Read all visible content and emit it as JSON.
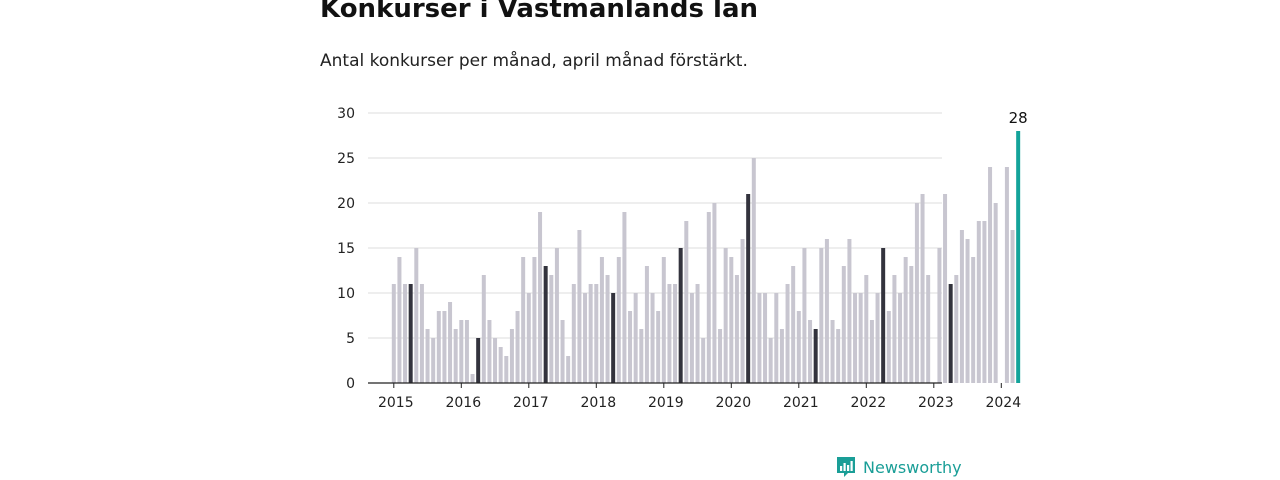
{
  "header": {
    "title": "Konkurser i Västmanlands län",
    "subtitle": "Antal konkurser per månad, april månad förstärkt."
  },
  "brand": {
    "name": "Newsworthy",
    "icon": "bar-chart-speech-bubble-icon"
  },
  "colors": {
    "bar": "#c8c6d0",
    "april": "#33333d",
    "latest": "#13a39a",
    "grid": "#dddddd",
    "axis": "#222222",
    "brand": "#1a9e97"
  },
  "chart_data": {
    "type": "bar",
    "title": "Konkurser i Västmanlands län",
    "subtitle": "Antal konkurser per månad, april månad förstärkt.",
    "xlabel": "",
    "ylabel": "",
    "ylim": [
      0,
      30
    ],
    "yticks": [
      0,
      5,
      10,
      15,
      20,
      25,
      30
    ],
    "xticks": [
      "2015",
      "2016",
      "2017",
      "2018",
      "2019",
      "2020",
      "2021",
      "2022",
      "2023",
      "2024"
    ],
    "grid": true,
    "highlight_month": 4,
    "latest_label": "28",
    "start": "2015-01",
    "end": "2024-04",
    "values": [
      11,
      14,
      11,
      11,
      15,
      11,
      6,
      5,
      8,
      8,
      9,
      6,
      7,
      7,
      1,
      5,
      12,
      7,
      5,
      4,
      3,
      6,
      8,
      14,
      10,
      14,
      19,
      13,
      12,
      15,
      7,
      3,
      11,
      17,
      10,
      11,
      11,
      14,
      12,
      10,
      14,
      19,
      8,
      10,
      6,
      13,
      10,
      8,
      14,
      11,
      11,
      15,
      18,
      10,
      11,
      5,
      19,
      20,
      6,
      15,
      14,
      12,
      16,
      21,
      25,
      10,
      10,
      5,
      10,
      6,
      11,
      13,
      8,
      15,
      7,
      6,
      15,
      16,
      7,
      6,
      13,
      16,
      10,
      10,
      12,
      7,
      10,
      15,
      8,
      12,
      10,
      14,
      13,
      20,
      21,
      12,
      0,
      15,
      21,
      11,
      12,
      17,
      16,
      14,
      18,
      18,
      24,
      20,
      0,
      24,
      17,
      28
    ]
  }
}
